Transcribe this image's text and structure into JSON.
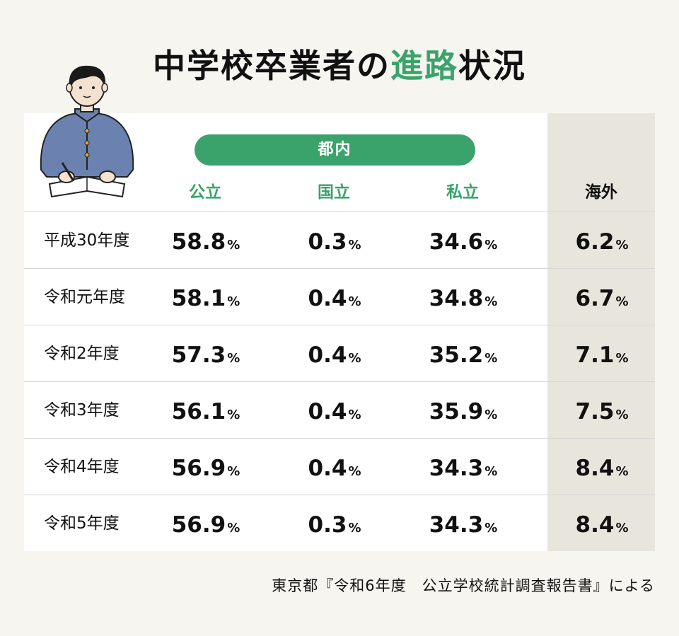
{
  "title": {
    "part1": "中学校卒業者の",
    "accent": "進路",
    "part2": "状況"
  },
  "group_label": "都内",
  "columns": {
    "public": "公立",
    "national": "国立",
    "private": "私立",
    "abroad": "海外"
  },
  "unit": "%",
  "rows": [
    {
      "year": "平成30年度",
      "public": "58.8",
      "national": "0.3",
      "private": "34.6",
      "abroad": "6.2"
    },
    {
      "year": "令和元年度",
      "public": "58.1",
      "national": "0.4",
      "private": "34.8",
      "abroad": "6.7"
    },
    {
      "year": "令和2年度",
      "public": "57.3",
      "national": "0.4",
      "private": "35.2",
      "abroad": "7.1"
    },
    {
      "year": "令和3年度",
      "public": "56.1",
      "national": "0.4",
      "private": "35.9",
      "abroad": "7.5"
    },
    {
      "year": "令和4年度",
      "public": "56.9",
      "national": "0.4",
      "private": "34.3",
      "abroad": "8.4"
    },
    {
      "year": "令和5年度",
      "public": "56.9",
      "national": "0.3",
      "private": "34.3",
      "abroad": "8.4"
    }
  ],
  "source": "東京都『令和6年度　公立学校統計調査報告書』による",
  "colors": {
    "accent": "#3aa36b",
    "abroad_bg": "#e8e6dc",
    "background": "#f6f5f0"
  }
}
